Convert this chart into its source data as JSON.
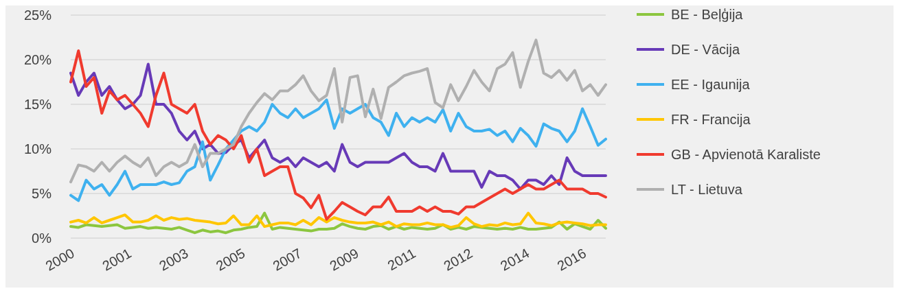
{
  "chart_data": {
    "type": "line",
    "x": [
      "2000-01",
      "2000-04",
      "2000-07",
      "2000-10",
      "2001-01",
      "2001-04",
      "2001-07",
      "2001-10",
      "2002-01",
      "2002-04",
      "2002-07",
      "2002-10",
      "2003-01",
      "2003-04",
      "2003-07",
      "2003-10",
      "2004-01",
      "2004-04",
      "2004-07",
      "2004-10",
      "2005-01",
      "2005-04",
      "2005-07",
      "2005-10",
      "2006-01",
      "2006-04",
      "2006-07",
      "2006-10",
      "2007-01",
      "2007-04",
      "2007-07",
      "2007-10",
      "2008-01",
      "2008-04",
      "2008-07",
      "2008-10",
      "2009-01",
      "2009-04",
      "2009-07",
      "2009-10",
      "2010-01",
      "2010-04",
      "2010-07",
      "2010-10",
      "2011-01",
      "2011-04",
      "2011-07",
      "2011-10",
      "2012-01",
      "2012-04",
      "2012-07",
      "2012-10",
      "2013-01",
      "2013-04",
      "2013-07",
      "2013-10",
      "2014-01",
      "2014-04",
      "2014-07",
      "2014-10",
      "2015-01",
      "2015-04",
      "2015-07",
      "2015-10",
      "2016-01",
      "2016-04",
      "2016-07",
      "2016-10",
      "2017-01",
      "2017-04"
    ],
    "series": [
      {
        "name": "BE - Beļģija",
        "color": "#8cc63f",
        "values": [
          1.3,
          1.2,
          1.5,
          1.4,
          1.3,
          1.4,
          1.5,
          1.1,
          1.2,
          1.3,
          1.1,
          1.2,
          1.1,
          1.0,
          1.2,
          0.9,
          0.6,
          0.9,
          0.7,
          0.8,
          0.6,
          0.9,
          1.0,
          1.2,
          1.3,
          2.8,
          1.0,
          1.2,
          1.1,
          1.0,
          0.9,
          0.8,
          1.0,
          1.0,
          1.1,
          1.6,
          1.3,
          1.1,
          1.0,
          1.3,
          1.4,
          1.0,
          1.3,
          1.0,
          1.2,
          1.1,
          1.0,
          1.1,
          1.5,
          1.0,
          1.2,
          1.0,
          1.3,
          1.2,
          1.1,
          1.0,
          1.1,
          1.0,
          1.2,
          1.0,
          1.0,
          1.1,
          1.2,
          1.8,
          1.0,
          1.6,
          1.3,
          1.0,
          2.0,
          1.1
        ]
      },
      {
        "name": "DE - Vācija",
        "color": "#673ab7",
        "values": [
          18.5,
          16,
          17.5,
          18.5,
          16,
          17,
          15.5,
          14.5,
          15,
          16,
          19.5,
          15,
          15,
          14,
          12,
          11,
          12,
          10,
          10.5,
          9.5,
          9.6,
          10.5,
          11,
          9,
          10,
          11,
          9,
          8.5,
          9,
          8,
          9,
          8.5,
          8,
          8.5,
          7.5,
          10.5,
          8.5,
          8,
          8.5,
          8.5,
          8.5,
          8.5,
          9,
          9.5,
          8.5,
          8,
          8,
          7.5,
          9.5,
          7.5,
          7.5,
          7.5,
          7.5,
          5.7,
          7.5,
          7,
          7,
          6.5,
          5.5,
          6.5,
          6.5,
          6,
          7,
          6,
          9,
          7.5,
          7,
          7,
          7,
          7
        ]
      },
      {
        "name": "EE - Igaunija",
        "color": "#3fb1ef",
        "values": [
          4.8,
          4.2,
          6.5,
          5.5,
          6,
          4.8,
          6,
          7.5,
          5.5,
          6,
          6,
          6,
          6.3,
          6,
          6.2,
          7.5,
          8,
          10.8,
          6.5,
          8.2,
          10,
          11,
          12,
          12.5,
          12,
          13,
          15,
          14,
          13.5,
          14.5,
          13.5,
          14,
          14.5,
          15.5,
          12.3,
          14.5,
          14,
          14.5,
          15,
          13.5,
          13,
          11.5,
          14,
          12.5,
          13.5,
          13,
          13.5,
          13,
          14.4,
          12,
          14,
          12.5,
          12,
          12,
          12.2,
          11.5,
          12,
          10.8,
          12.3,
          11.5,
          10.3,
          12.8,
          12.3,
          12,
          10.8,
          12,
          14.5,
          12.5,
          10.4,
          11.1
        ]
      },
      {
        "name": "FR - Francija",
        "color": "#ffc600",
        "values": [
          1.8,
          2,
          1.7,
          2.3,
          1.7,
          2,
          2.3,
          2.6,
          1.8,
          1.8,
          2,
          2.5,
          2,
          2.3,
          2.1,
          2.2,
          2,
          1.9,
          1.8,
          1.6,
          1.7,
          2.5,
          1.5,
          1.5,
          2.5,
          1.3,
          1.5,
          1.7,
          1.7,
          1.5,
          2,
          1.5,
          2.3,
          1.8,
          2.3,
          2,
          1.8,
          1.7,
          1.7,
          1.8,
          1.5,
          1.8,
          1.3,
          1.6,
          1.5,
          1.5,
          1.7,
          1.5,
          1.5,
          1.2,
          1.4,
          2.3,
          1.6,
          1.3,
          1.5,
          1.4,
          1.7,
          1.5,
          1.6,
          2.8,
          1.7,
          1.6,
          1.4,
          1.7,
          1.8,
          1.7,
          1.6,
          1.4,
          1.5,
          1.5
        ]
      },
      {
        "name": "GB - Apvienotā Karaliste",
        "color": "#f03a2e",
        "values": [
          17.5,
          21,
          17,
          18,
          14,
          16.5,
          15.5,
          16,
          15,
          14,
          12.5,
          16,
          18.5,
          15,
          14.5,
          14,
          15,
          12,
          10.5,
          11.5,
          11,
          10,
          11.5,
          8.5,
          10,
          7,
          7.5,
          8,
          8,
          5,
          4.5,
          3.4,
          4.8,
          2.1,
          3,
          4,
          3.5,
          3,
          2.6,
          3.5,
          3.5,
          4.6,
          3,
          3,
          3,
          3.5,
          3,
          3.5,
          3,
          3,
          2.7,
          3.5,
          3.5,
          4,
          4.5,
          5,
          5.5,
          5,
          5.5,
          6,
          5.5,
          5.5,
          6,
          6.5,
          5.5,
          5.5,
          5.5,
          5,
          5,
          4.6
        ]
      },
      {
        "name": "LT - Lietuva",
        "color": "#b0b0b0",
        "values": [
          6.3,
          8.2,
          8,
          7.5,
          8.5,
          7.5,
          8.5,
          9.2,
          8.5,
          8,
          9,
          7,
          8,
          8.5,
          8,
          8.5,
          10.5,
          8,
          9.5,
          9.5,
          10,
          10.5,
          12.5,
          14,
          15.2,
          16.2,
          15.5,
          16.5,
          16.5,
          17.2,
          18.2,
          16.5,
          15.4,
          16,
          19,
          13,
          18,
          18.2,
          13.6,
          16.7,
          13.4,
          16.9,
          17.5,
          18.2,
          18.5,
          18.7,
          19,
          15.2,
          14.6,
          17.2,
          15.4,
          17,
          18.8,
          17.5,
          16.5,
          19,
          19.5,
          20.8,
          16.9,
          19.8,
          22.2,
          18.5,
          18,
          18.8,
          17.7,
          18.8,
          16.5,
          17.2,
          16,
          17.2
        ]
      }
    ],
    "xlim": [
      "2000-01",
      "2017-04"
    ],
    "xticks": [
      {
        "value": "2000-01",
        "label": "2000"
      },
      {
        "value": "2001-11",
        "label": "2001"
      },
      {
        "value": "2003-09",
        "label": "2003"
      },
      {
        "value": "2005-07",
        "label": "2005"
      },
      {
        "value": "2007-05",
        "label": "2007"
      },
      {
        "value": "2009-03",
        "label": "2009"
      },
      {
        "value": "2011-01",
        "label": "2011"
      },
      {
        "value": "2012-11",
        "label": "2012"
      },
      {
        "value": "2014-09",
        "label": "2014"
      },
      {
        "value": "2016-07",
        "label": "2016"
      }
    ],
    "ylim": [
      0,
      25
    ],
    "yticks": [
      {
        "value": 0,
        "label": "0%"
      },
      {
        "value": 5,
        "label": "5%"
      },
      {
        "value": 10,
        "label": "10%"
      },
      {
        "value": 15,
        "label": "15%"
      },
      {
        "value": 20,
        "label": "20%"
      },
      {
        "value": 25,
        "label": "25%"
      }
    ],
    "grid": "y",
    "legend": "right",
    "line_style": "solid"
  }
}
